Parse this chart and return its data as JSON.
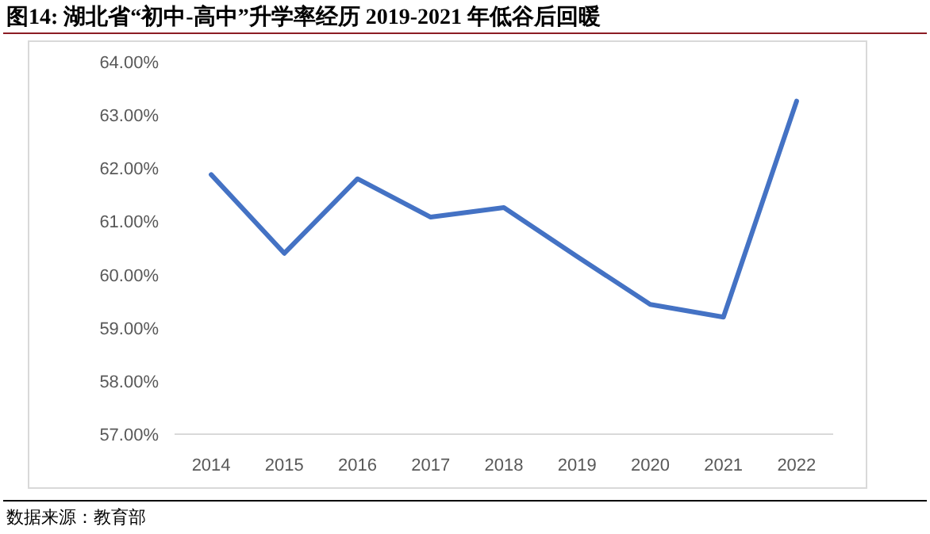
{
  "chart_data": {
    "type": "line",
    "title": "图14:  湖北省“初中-高中”升学率经历 2019-2021 年低谷后回暖",
    "categories": [
      "2014",
      "2015",
      "2016",
      "2017",
      "2018",
      "2019",
      "2020",
      "2021",
      "2022"
    ],
    "series": [
      {
        "color": "#4472c4",
        "values": [
          61.88,
          60.4,
          61.8,
          61.08,
          61.26,
          60.34,
          59.44,
          59.2,
          63.26
        ]
      }
    ],
    "ylim": [
      57,
      64
    ],
    "yticks": [
      {
        "value": 57,
        "label": "57.00%"
      },
      {
        "value": 58,
        "label": "58.00%"
      },
      {
        "value": 59,
        "label": "59.00%"
      },
      {
        "value": 60,
        "label": "60.00%"
      },
      {
        "value": 61,
        "label": "61.00%"
      },
      {
        "value": 62,
        "label": "62.00%"
      },
      {
        "value": 63,
        "label": "63.00%"
      },
      {
        "value": 64,
        "label": "64.00%"
      }
    ],
    "grid": false,
    "marker": "none",
    "line_style": "solid",
    "annotations": [
      "数据来源：教育部"
    ]
  }
}
